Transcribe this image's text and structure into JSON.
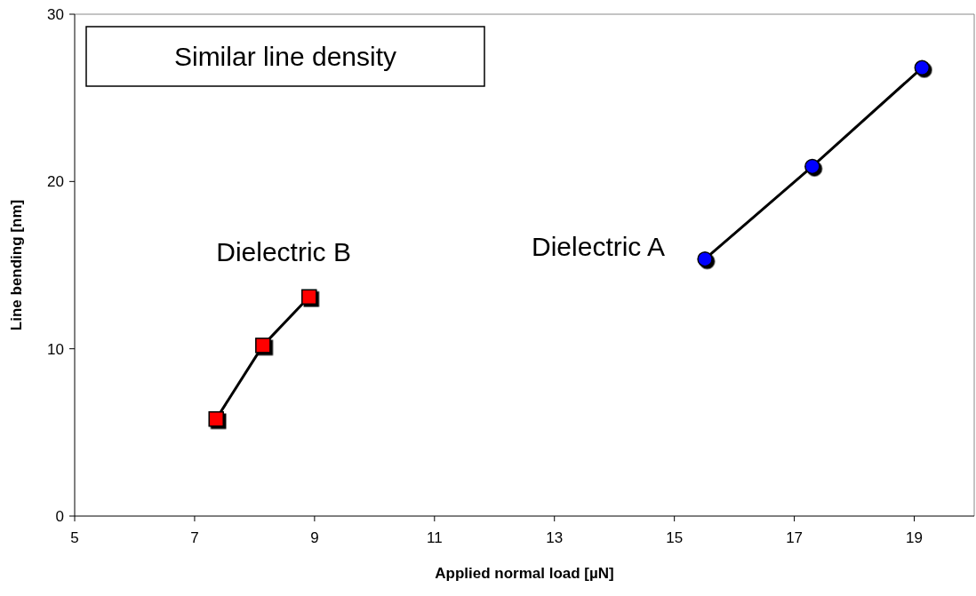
{
  "chart_data": {
    "type": "line",
    "xlabel": "Applied normal load [µN]",
    "ylabel": "Line bending [nm]",
    "xlim": [
      5,
      20
    ],
    "xticks": [
      5,
      7,
      9,
      11,
      13,
      15,
      17,
      19
    ],
    "ylim": [
      0,
      30
    ],
    "yticks": [
      0,
      10,
      20,
      30
    ],
    "grid": false,
    "line_style": "solid",
    "annotations": [
      "Similar line density"
    ],
    "series": [
      {
        "name": "Dielectric B",
        "color": "#ff0000",
        "marker": "square",
        "x": [
          7.36,
          8.14,
          8.91
        ],
        "values": [
          5.8,
          10.2,
          13.1
        ]
      },
      {
        "name": "Dielectric A",
        "color": "#0000ff",
        "marker": "circle",
        "x": [
          15.51,
          17.3,
          19.13
        ],
        "values": [
          15.36,
          20.9,
          26.8
        ]
      }
    ]
  }
}
